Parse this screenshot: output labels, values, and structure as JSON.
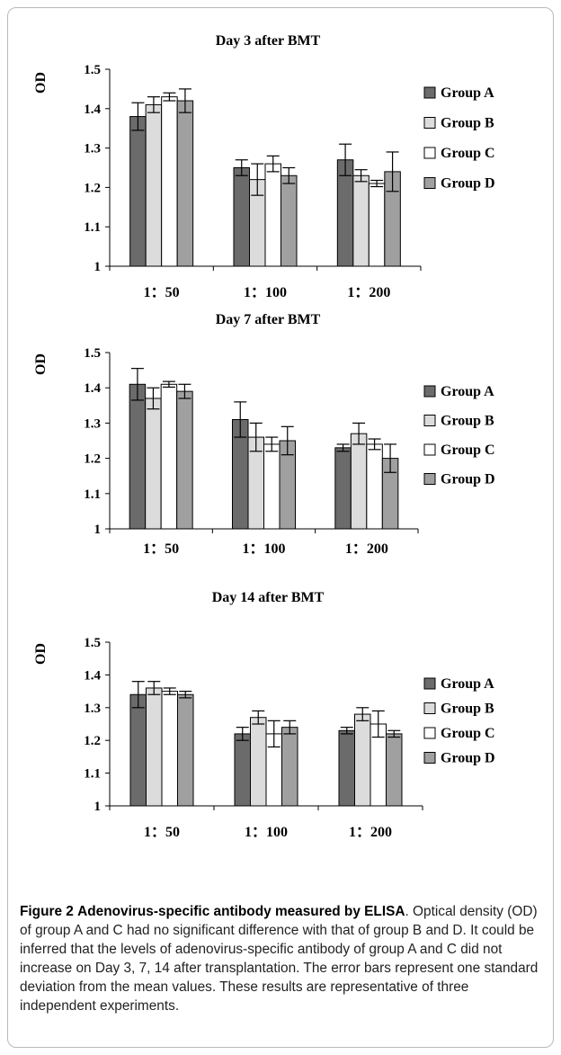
{
  "chart_data": [
    {
      "type": "bar",
      "title": "Day 3 after BMT",
      "ylabel": "OD",
      "xlabel": "",
      "ylim": [
        1,
        1.5
      ],
      "yticks": [
        "1",
        "1.1",
        "1.2",
        "1.3",
        "1.4",
        "1.5"
      ],
      "categories": [
        "1：50",
        "1：100",
        "1：200"
      ],
      "legend_position": "right",
      "grid": false,
      "series": [
        {
          "name": "Group A",
          "color": "#6b6b6b",
          "values": [
            1.38,
            1.25,
            1.27
          ],
          "errors": [
            0.035,
            0.02,
            0.04
          ]
        },
        {
          "name": "Group B",
          "color": "#dcdcdc",
          "values": [
            1.41,
            1.22,
            1.23
          ],
          "errors": [
            0.02,
            0.04,
            0.015
          ]
        },
        {
          "name": "Group C",
          "color": "#ffffff",
          "values": [
            1.43,
            1.26,
            1.21
          ],
          "errors": [
            0.01,
            0.02,
            0.008
          ]
        },
        {
          "name": "Group D",
          "color": "#a0a0a0",
          "values": [
            1.42,
            1.23,
            1.24
          ],
          "errors": [
            0.03,
            0.02,
            0.05
          ]
        }
      ]
    },
    {
      "type": "bar",
      "title": "Day 7 after BMT",
      "ylabel": "OD",
      "xlabel": "",
      "ylim": [
        1,
        1.5
      ],
      "yticks": [
        "1",
        "1.1",
        "1.2",
        "1.3",
        "1.4",
        "1.5"
      ],
      "categories": [
        "1：50",
        "1：100",
        "1：200"
      ],
      "legend_position": "right",
      "grid": false,
      "series": [
        {
          "name": "Group A",
          "color": "#6b6b6b",
          "values": [
            1.41,
            1.31,
            1.23
          ],
          "errors": [
            0.045,
            0.05,
            0.01
          ]
        },
        {
          "name": "Group B",
          "color": "#dcdcdc",
          "values": [
            1.37,
            1.26,
            1.27
          ],
          "errors": [
            0.03,
            0.04,
            0.03
          ]
        },
        {
          "name": "Group C",
          "color": "#ffffff",
          "values": [
            1.41,
            1.24,
            1.24
          ],
          "errors": [
            0.008,
            0.02,
            0.015
          ]
        },
        {
          "name": "Group D",
          "color": "#a0a0a0",
          "values": [
            1.39,
            1.25,
            1.2
          ],
          "errors": [
            0.02,
            0.04,
            0.04
          ]
        }
      ]
    },
    {
      "type": "bar",
      "title": "Day 14 after BMT",
      "ylabel": "OD",
      "xlabel": "",
      "ylim": [
        1,
        1.5
      ],
      "yticks": [
        "1",
        "1.1",
        "1.2",
        "1.3",
        "1.4",
        "1.5"
      ],
      "categories": [
        "1：50",
        "1：100",
        "1：200"
      ],
      "legend_position": "right",
      "grid": false,
      "series": [
        {
          "name": "Group A",
          "color": "#6b6b6b",
          "values": [
            1.34,
            1.22,
            1.23
          ],
          "errors": [
            0.04,
            0.02,
            0.01
          ]
        },
        {
          "name": "Group B",
          "color": "#dcdcdc",
          "values": [
            1.36,
            1.27,
            1.28
          ],
          "errors": [
            0.02,
            0.02,
            0.02
          ]
        },
        {
          "name": "Group C",
          "color": "#ffffff",
          "values": [
            1.35,
            1.22,
            1.25
          ],
          "errors": [
            0.01,
            0.04,
            0.04
          ]
        },
        {
          "name": "Group D",
          "color": "#a0a0a0",
          "values": [
            1.34,
            1.24,
            1.22
          ],
          "errors": [
            0.01,
            0.02,
            0.01
          ]
        }
      ]
    }
  ],
  "caption": {
    "label": "Figure 2",
    "title": "Adenovirus-specific antibody measured by ELISA",
    "text": ". Optical density (OD) of group A and C had no significant difference with that of group B and D. It could be inferred that the levels of adenovirus-specific antibody of group A and C did not increase on Day 3, 7, 14 after transplantation. The error bars represent one standard deviation from the mean values. These results are representative of three independent experiments."
  }
}
